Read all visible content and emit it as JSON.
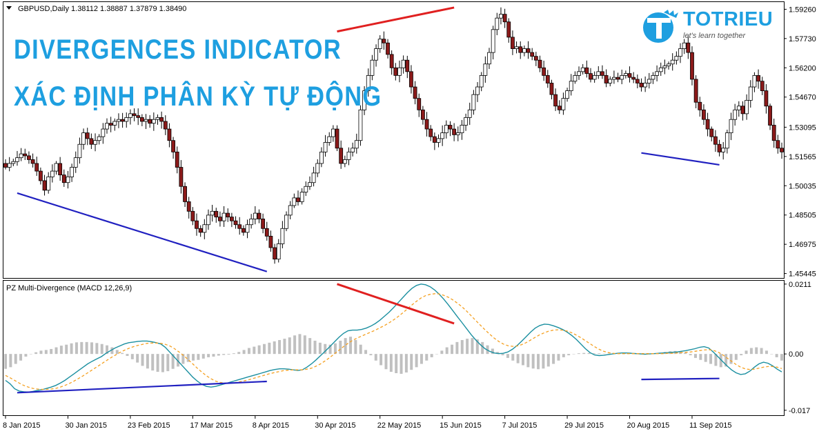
{
  "header": {
    "symbol_line": "GBPUSD,Daily  1.38112 1.38887 1.37879 1.38490",
    "indicator_line": "PZ Multi-Divergence (MACD 12,26,9)"
  },
  "titles": {
    "line1": "DIVERGENCES INDICATOR",
    "line2": "XÁC ĐỊNH PHÂN KỲ TỰ ĐỘNG"
  },
  "logo": {
    "name": "TOTRIEU",
    "tagline": "let's learn together",
    "color": "#1e9fe0"
  },
  "colors": {
    "bull": "#ffffff",
    "bear": "#8b1a1a",
    "wick": "#000000",
    "bearish_divergence": "#e02020",
    "bullish_divergence": "#2020c0",
    "macd_line": "#1a8fa0",
    "signal_line": "#f5a020",
    "histogram": "#c0c0c0"
  },
  "chart_data": [
    {
      "type": "candlestick",
      "title": "GBPUSD,Daily",
      "ohlc_last": {
        "open": 1.38112,
        "high": 1.38887,
        "low": 1.37879,
        "close": 1.3849
      },
      "y_ticks": [
        "1.59260",
        "1.57730",
        "1.56200",
        "1.54670",
        "1.53095",
        "1.51565",
        "1.50035",
        "1.48505",
        "1.46975",
        "1.45445"
      ],
      "ylim": [
        1.4525,
        1.596
      ],
      "x_ticks": [
        "8 Jan 2015",
        "30 Jan 2015",
        "23 Feb 2015",
        "17 Mar 2015",
        "8 Apr 2015",
        "30 Apr 2015",
        "22 May 2015",
        "15 Jun 2015",
        "7 Jul 2015",
        "29 Jul 2015",
        "20 Aug 2015",
        "11 Sep 2015"
      ],
      "closes": [
        1.51,
        1.512,
        1.513,
        1.515,
        1.517,
        1.516,
        1.514,
        1.512,
        1.508,
        1.503,
        1.498,
        1.505,
        1.508,
        1.512,
        1.506,
        1.502,
        1.505,
        1.51,
        1.515,
        1.522,
        1.528,
        1.525,
        1.522,
        1.524,
        1.526,
        1.53,
        1.533,
        1.532,
        1.534,
        1.535,
        1.534,
        1.536,
        1.538,
        1.537,
        1.536,
        1.534,
        1.535,
        1.533,
        1.535,
        1.536,
        1.534,
        1.53,
        1.524,
        1.518,
        1.51,
        1.5,
        1.492,
        1.487,
        1.482,
        1.478,
        1.476,
        1.48,
        1.485,
        1.487,
        1.484,
        1.482,
        1.486,
        1.484,
        1.482,
        1.48,
        1.478,
        1.476,
        1.48,
        1.483,
        1.486,
        1.483,
        1.478,
        1.474,
        1.468,
        1.462,
        1.47,
        1.478,
        1.485,
        1.49,
        1.494,
        1.492,
        1.497,
        1.5,
        1.502,
        1.507,
        1.512,
        1.518,
        1.523,
        1.526,
        1.53,
        1.52,
        1.512,
        1.514,
        1.518,
        1.52,
        1.524,
        1.54,
        1.55,
        1.558,
        1.566,
        1.572,
        1.577,
        1.575,
        1.569,
        1.562,
        1.558,
        1.562,
        1.566,
        1.56,
        1.552,
        1.546,
        1.54,
        1.535,
        1.53,
        1.526,
        1.523,
        1.525,
        1.528,
        1.532,
        1.53,
        1.527,
        1.528,
        1.532,
        1.536,
        1.54,
        1.548,
        1.552,
        1.558,
        1.564,
        1.57,
        1.582,
        1.588,
        1.59,
        1.586,
        1.578,
        1.572,
        1.573,
        1.57,
        1.572,
        1.57,
        1.568,
        1.566,
        1.562,
        1.558,
        1.554,
        1.548,
        1.542,
        1.54,
        1.546,
        1.55,
        1.555,
        1.558,
        1.56,
        1.562,
        1.559,
        1.556,
        1.558,
        1.56,
        1.558,
        1.554,
        1.556,
        1.557,
        1.556,
        1.558,
        1.559,
        1.557,
        1.556,
        1.554,
        1.552,
        1.554,
        1.556,
        1.558,
        1.56,
        1.562,
        1.563,
        1.564,
        1.566,
        1.568,
        1.572,
        1.575,
        1.57,
        1.556,
        1.544,
        1.54,
        1.535,
        1.53,
        1.526,
        1.522,
        1.518,
        1.52,
        1.528,
        1.535,
        1.54,
        1.542,
        1.538,
        1.545,
        1.552,
        1.558,
        1.555,
        1.55,
        1.542,
        1.532,
        1.524,
        1.52,
        1.518
      ],
      "divergence_lines": [
        {
          "kind": "bullish",
          "from": {
            "x": "13 Jan 2015",
            "y": 1.4965
          },
          "to": {
            "x": "13 Apr 2015",
            "y": 1.4555
          }
        },
        {
          "kind": "bearish",
          "from": {
            "x": "7 May 2015",
            "y": 1.581
          },
          "to": {
            "x": "18 Jun 2015",
            "y": 1.5935
          }
        },
        {
          "kind": "bullish",
          "from": {
            "x": "25 Aug 2015",
            "y": 1.5175
          },
          "to": {
            "x": "22 Sep 2015",
            "y": 1.5113
          }
        }
      ]
    },
    {
      "type": "line",
      "title": "PZ Multi-Divergence (MACD 12,26,9)",
      "y_ticks": [
        "0.0211",
        "0.00",
        "-0.017"
      ],
      "ylim": [
        -0.0183,
        0.0219
      ],
      "series": [
        {
          "name": "MACD 12,26,9",
          "role": "macd",
          "values": [
            -0.008,
            -0.009,
            -0.0105,
            -0.0112,
            -0.0114,
            -0.0115,
            -0.0113,
            -0.011,
            -0.0108,
            -0.0104,
            -0.01,
            -0.0095,
            -0.0088,
            -0.008,
            -0.007,
            -0.006,
            -0.005,
            -0.004,
            -0.003,
            -0.0022,
            -0.0015,
            -0.0008,
            0.0002,
            0.001,
            0.0018,
            0.0024,
            0.003,
            0.0034,
            0.0036,
            0.0038,
            0.0039,
            0.0039,
            0.0037,
            0.0034,
            0.003,
            0.002,
            0.0005,
            -0.001,
            -0.0025,
            -0.004,
            -0.0055,
            -0.007,
            -0.0082,
            -0.0092,
            -0.0098,
            -0.01,
            -0.0098,
            -0.0094,
            -0.009,
            -0.0086,
            -0.0082,
            -0.0078,
            -0.0074,
            -0.007,
            -0.0066,
            -0.0062,
            -0.0058,
            -0.0054,
            -0.005,
            -0.0047,
            -0.0045,
            -0.0045,
            -0.0046,
            -0.0048,
            -0.005,
            -0.0048,
            -0.004,
            -0.003,
            -0.0018,
            -0.0005,
            0.0008,
            0.0022,
            0.0036,
            0.005,
            0.0062,
            0.007,
            0.0072,
            0.0072,
            0.0074,
            0.0078,
            0.0084,
            0.0092,
            0.0102,
            0.0114,
            0.0126,
            0.014,
            0.0155,
            0.017,
            0.0185,
            0.0198,
            0.0207,
            0.0211,
            0.0209,
            0.0203,
            0.0193,
            0.018,
            0.0165,
            0.0148,
            0.013,
            0.0112,
            0.0094,
            0.0076,
            0.0058,
            0.0042,
            0.0028,
            0.0016,
            0.0008,
            0.0003,
            0.0001,
            0.0002,
            0.0006,
            0.0014,
            0.0025,
            0.0038,
            0.0052,
            0.0066,
            0.0078,
            0.0086,
            0.009,
            0.0089,
            0.0085,
            0.008,
            0.0074,
            0.0066,
            0.0056,
            0.0044,
            0.003,
            0.0016,
            0.0004,
            -0.0003,
            -0.0005,
            -0.0004,
            -0.0002,
            0.0,
            0.0002,
            0.0003,
            0.0003,
            0.0002,
            0.0001,
            0.0,
            -0.0001,
            0.0,
            0.0001,
            0.0002,
            0.0003,
            0.0004,
            0.0005,
            0.0006,
            0.0008,
            0.001,
            0.0013,
            0.0016,
            0.002,
            0.0022,
            0.0018,
            0.0006,
            -0.0008,
            -0.0022,
            -0.0036,
            -0.0048,
            -0.0057,
            -0.0062,
            -0.006,
            -0.0052,
            -0.004,
            -0.003,
            -0.0025,
            -0.0028,
            -0.0036,
            -0.0046,
            -0.0054
          ]
        },
        {
          "name": "Signal",
          "role": "signal",
          "values": [
            -0.0065,
            -0.0072,
            -0.008,
            -0.0088,
            -0.0095,
            -0.01,
            -0.0104,
            -0.0106,
            -0.0107,
            -0.0107,
            -0.0106,
            -0.0104,
            -0.01,
            -0.0095,
            -0.0089,
            -0.0082,
            -0.0074,
            -0.0066,
            -0.0057,
            -0.0048,
            -0.0039,
            -0.003,
            -0.0021,
            -0.0012,
            -0.0004,
            0.0004,
            0.0011,
            0.0017,
            0.0022,
            0.0026,
            0.0029,
            0.0032,
            0.0033,
            0.0033,
            0.0032,
            0.0029,
            0.0024,
            0.0016,
            0.0006,
            -0.0005,
            -0.0017,
            -0.003,
            -0.0043,
            -0.0055,
            -0.0066,
            -0.0075,
            -0.0082,
            -0.0086,
            -0.0088,
            -0.0088,
            -0.0087,
            -0.0085,
            -0.0082,
            -0.0079,
            -0.0075,
            -0.0071,
            -0.0067,
            -0.0063,
            -0.0059,
            -0.0056,
            -0.0053,
            -0.005,
            -0.0049,
            -0.0048,
            -0.0048,
            -0.0048,
            -0.0046,
            -0.0043,
            -0.0037,
            -0.003,
            -0.0021,
            -0.0011,
            0.0,
            0.0011,
            0.0022,
            0.0032,
            0.0041,
            0.0048,
            0.0054,
            0.006,
            0.0066,
            0.0072,
            0.0079,
            0.0086,
            0.0094,
            0.0103,
            0.0113,
            0.0124,
            0.0136,
            0.0148,
            0.0159,
            0.0169,
            0.0176,
            0.018,
            0.0182,
            0.0181,
            0.0177,
            0.0171,
            0.0163,
            0.0153,
            0.0142,
            0.0129,
            0.0115,
            0.0101,
            0.0087,
            0.0073,
            0.006,
            0.0048,
            0.0038,
            0.003,
            0.0025,
            0.0023,
            0.0024,
            0.0028,
            0.0034,
            0.0042,
            0.005,
            0.0058,
            0.0064,
            0.0069,
            0.0072,
            0.0073,
            0.0072,
            0.0069,
            0.0064,
            0.0057,
            0.0049,
            0.004,
            0.0031,
            0.0022,
            0.0014,
            0.0008,
            0.0004,
            0.0002,
            0.0001,
            0.0001,
            0.0001,
            0.0001,
            0.0001,
            0.0001,
            0.0001,
            0.0001,
            0.0001,
            0.0001,
            0.0001,
            0.0002,
            0.0002,
            0.0003,
            0.0004,
            0.0005,
            0.0006,
            0.0008,
            0.001,
            0.0012,
            0.0013,
            0.0011,
            0.0006,
            -0.0002,
            -0.0012,
            -0.0022,
            -0.0032,
            -0.004,
            -0.0045,
            -0.0047,
            -0.0046,
            -0.0043,
            -0.004,
            -0.0038,
            -0.0038,
            -0.004,
            -0.0044
          ]
        }
      ],
      "histogram": [
        -0.0045,
        -0.004,
        -0.003,
        -0.002,
        -0.0008,
        0.0,
        0.0005,
        0.001,
        0.0012,
        0.0015,
        0.002,
        0.0025,
        0.0028,
        0.0032,
        0.0035,
        0.0036,
        0.0036,
        0.0035,
        0.0033,
        0.003,
        0.0026,
        0.002,
        0.0012,
        0.0003,
        -0.0006,
        -0.0016,
        -0.0026,
        -0.0036,
        -0.0044,
        -0.005,
        -0.0054,
        -0.0055,
        -0.0052,
        -0.0045,
        -0.0038,
        -0.003,
        -0.0024,
        -0.002,
        -0.0018,
        -0.0014,
        -0.001,
        -0.0008,
        -0.0005,
        -0.0003,
        -0.0002,
        0.0002,
        0.0006,
        0.0012,
        0.0018,
        0.0022,
        0.0026,
        0.003,
        0.0034,
        0.0038,
        0.0042,
        0.0046,
        0.005,
        0.0056,
        0.006,
        0.0056,
        0.0048,
        0.004,
        0.0034,
        0.003,
        0.0028,
        0.0032,
        0.004,
        0.0048,
        0.0052,
        0.0042,
        0.0028,
        0.0012,
        -0.0004,
        -0.002,
        -0.0034,
        -0.0046,
        -0.0054,
        -0.0058,
        -0.006,
        -0.0056,
        -0.0048,
        -0.004,
        -0.003,
        -0.002,
        -0.001,
        0.0,
        0.001,
        0.002,
        0.0028,
        0.0036,
        0.0042,
        0.0046,
        0.0048,
        0.0044,
        0.0036,
        0.0026,
        0.0016,
        0.0006,
        -0.0004,
        -0.0012,
        -0.002,
        -0.0028,
        -0.0034,
        -0.004,
        -0.0044,
        -0.0046,
        -0.0044,
        -0.0038,
        -0.003,
        -0.002,
        -0.001,
        -0.0004,
        0.0,
        0.0002,
        0.0003,
        0.0003,
        0.0002,
        0.0002,
        0.0001,
        0.0001,
        0.0002,
        0.0003,
        0.0004,
        0.0004,
        0.0003,
        0.0002,
        0.0001,
        0.0001,
        0.0002,
        0.0004,
        0.0006,
        0.0008,
        0.0009,
        0.0008,
        0.0004,
        -0.0004,
        -0.0012,
        -0.0018,
        -0.0024,
        -0.003,
        -0.0036,
        -0.004,
        -0.0038,
        -0.003,
        -0.0018,
        -0.0004,
        0.001,
        0.0018,
        0.002,
        0.0018,
        0.001,
        0.0,
        -0.001,
        -0.002
      ],
      "divergence_lines": [
        {
          "kind": "bullish",
          "from": {
            "x": "13 Jan 2015",
            "y": -0.0117
          },
          "to": {
            "x": "13 Apr 2015",
            "y": -0.0083
          }
        },
        {
          "kind": "bearish",
          "from": {
            "x": "7 May 2015",
            "y": 0.0211
          },
          "to": {
            "x": "18 Jun 2015",
            "y": 0.0092
          }
        },
        {
          "kind": "bullish",
          "from": {
            "x": "25 Aug 2015",
            "y": -0.0077
          },
          "to": {
            "x": "22 Sep 2015",
            "y": -0.0074
          }
        }
      ]
    }
  ]
}
